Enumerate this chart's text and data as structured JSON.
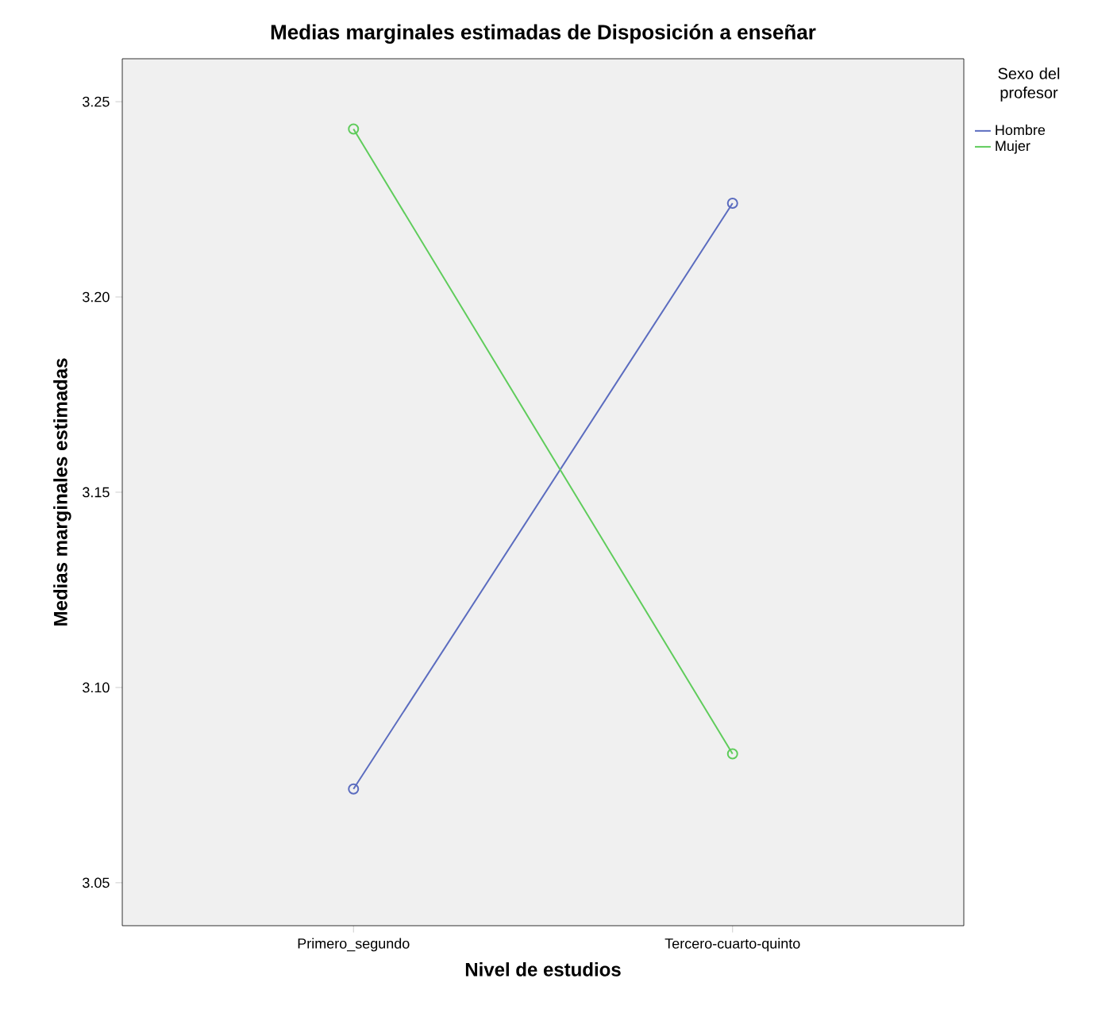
{
  "chart_data": {
    "type": "line",
    "title": "Medias marginales estimadas de Disposición a enseñar",
    "xlabel": "Nivel de estudios",
    "ylabel": "Medias marginales estimadas",
    "legend_title": "Sexo del profesor",
    "categories": [
      "Primero_segundo",
      "Tercero-cuarto-quinto"
    ],
    "series": [
      {
        "name": "Hombre",
        "color": "#5b6cbf",
        "values": [
          3.074,
          3.224
        ]
      },
      {
        "name": "Mujer",
        "color": "#5fcc5b",
        "values": [
          3.243,
          3.083
        ]
      }
    ],
    "ylim": [
      3.039,
      3.261
    ],
    "yticks": [
      {
        "value": 3.05,
        "label": "3.05"
      },
      {
        "value": 3.1,
        "label": "3.10"
      },
      {
        "value": 3.15,
        "label": "3.15"
      },
      {
        "value": 3.2,
        "label": "3.20"
      },
      {
        "value": 3.25,
        "label": "3.25"
      }
    ],
    "marker": "circle",
    "line_style": "solid",
    "legend": "top right",
    "grid": false
  }
}
